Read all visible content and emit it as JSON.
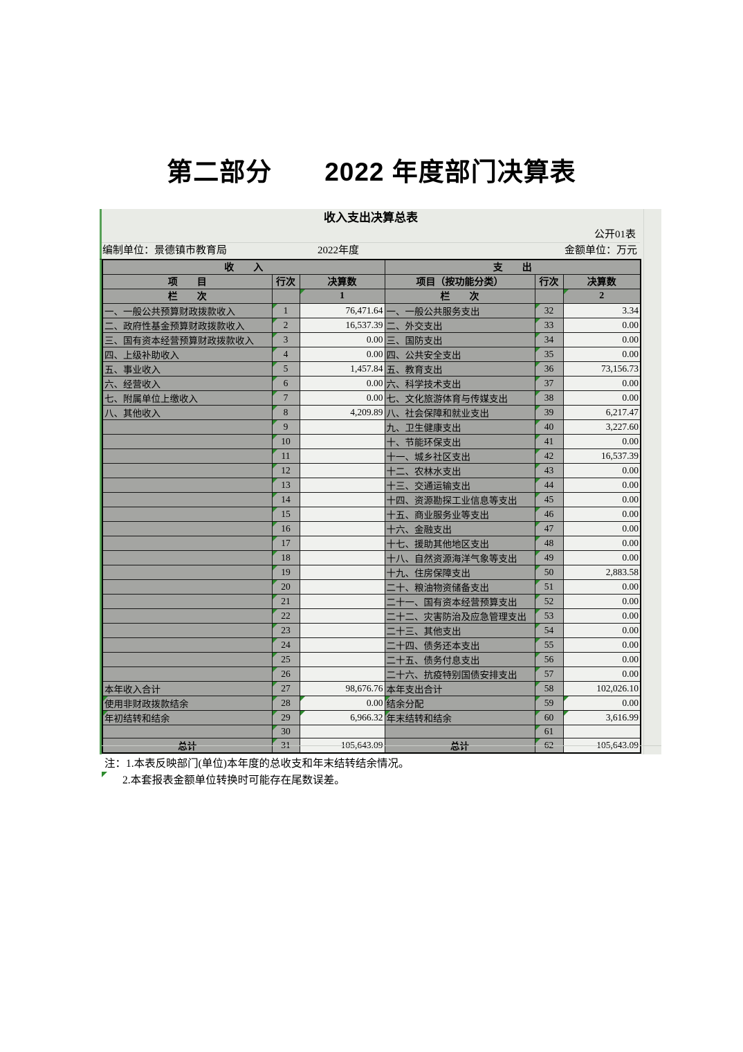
{
  "page": {
    "title": "第二部分　　2022 年度部门决算表"
  },
  "sheet": {
    "table_title": "收入支出决算总表",
    "doc_code": "公开01表",
    "prepared_by": "编制单位：景德镇市教育局",
    "period": "2022年度",
    "unit_label": "金额单位：万元",
    "headers": {
      "income_section": "收　　入",
      "expense_section": "支　　出",
      "item": "项　　目",
      "row_no": "行次",
      "amount": "决算数",
      "item_expense": "项目（按功能分类）",
      "row_no2": "行次",
      "amount2": "决算数",
      "lanci": "栏　　次",
      "lanci2": "栏　　次",
      "col1": "1",
      "col2": "2"
    },
    "rows": [
      {
        "il": "一、一般公共预算财政拨款收入",
        "ino": "1",
        "iv": "76,471.64",
        "el": "一、一般公共服务支出",
        "eno": "32",
        "ev": "3.34"
      },
      {
        "il": "二、政府性基金预算财政拨款收入",
        "ino": "2",
        "iv": "16,537.39",
        "el": "二、外交支出",
        "eno": "33",
        "ev": "0.00"
      },
      {
        "il": "三、国有资本经营预算财政拨款收入",
        "ino": "3",
        "iv": "0.00",
        "el": "三、国防支出",
        "eno": "34",
        "ev": "0.00"
      },
      {
        "il": "四、上级补助收入",
        "ino": "4",
        "iv": "0.00",
        "el": "四、公共安全支出",
        "eno": "35",
        "ev": "0.00"
      },
      {
        "il": "五、事业收入",
        "ino": "5",
        "iv": "1,457.84",
        "el": "五、教育支出",
        "eno": "36",
        "ev": "73,156.73"
      },
      {
        "il": "六、经营收入",
        "ino": "6",
        "iv": "0.00",
        "el": "六、科学技术支出",
        "eno": "37",
        "ev": "0.00"
      },
      {
        "il": "七、附属单位上缴收入",
        "ino": "7",
        "iv": "0.00",
        "el": "七、文化旅游体育与传媒支出",
        "eno": "38",
        "ev": "0.00"
      },
      {
        "il": "八、其他收入",
        "ino": "8",
        "iv": "4,209.89",
        "el": "八、社会保障和就业支出",
        "eno": "39",
        "ev": "6,217.47"
      },
      {
        "il": "",
        "ino": "9",
        "iv": "",
        "el": "九、卫生健康支出",
        "eno": "40",
        "ev": "3,227.60"
      },
      {
        "il": "",
        "ino": "10",
        "iv": "",
        "el": "十、节能环保支出",
        "eno": "41",
        "ev": "0.00"
      },
      {
        "il": "",
        "ino": "11",
        "iv": "",
        "el": "十一、城乡社区支出",
        "eno": "42",
        "ev": "16,537.39"
      },
      {
        "il": "",
        "ino": "12",
        "iv": "",
        "el": "十二、农林水支出",
        "eno": "43",
        "ev": "0.00"
      },
      {
        "il": "",
        "ino": "13",
        "iv": "",
        "el": "十三、交通运输支出",
        "eno": "44",
        "ev": "0.00"
      },
      {
        "il": "",
        "ino": "14",
        "iv": "",
        "el": "十四、资源勘探工业信息等支出",
        "eno": "45",
        "ev": "0.00"
      },
      {
        "il": "",
        "ino": "15",
        "iv": "",
        "el": "十五、商业服务业等支出",
        "eno": "46",
        "ev": "0.00"
      },
      {
        "il": "",
        "ino": "16",
        "iv": "",
        "el": "十六、金融支出",
        "eno": "47",
        "ev": "0.00"
      },
      {
        "il": "",
        "ino": "17",
        "iv": "",
        "el": "十七、援助其他地区支出",
        "eno": "48",
        "ev": "0.00"
      },
      {
        "il": "",
        "ino": "18",
        "iv": "",
        "el": "十八、自然资源海洋气象等支出",
        "eno": "49",
        "ev": "0.00"
      },
      {
        "il": "",
        "ino": "19",
        "iv": "",
        "el": "十九、住房保障支出",
        "eno": "50",
        "ev": "2,883.58"
      },
      {
        "il": "",
        "ino": "20",
        "iv": "",
        "el": "二十、粮油物资储备支出",
        "eno": "51",
        "ev": "0.00"
      },
      {
        "il": "",
        "ino": "21",
        "iv": "",
        "el": "二十一、国有资本经营预算支出",
        "eno": "52",
        "ev": "0.00"
      },
      {
        "il": "",
        "ino": "22",
        "iv": "",
        "el": "二十二、灾害防治及应急管理支出",
        "eno": "53",
        "ev": "0.00"
      },
      {
        "il": "",
        "ino": "23",
        "iv": "",
        "el": "二十三、其他支出",
        "eno": "54",
        "ev": "0.00"
      },
      {
        "il": "",
        "ino": "24",
        "iv": "",
        "el": "二十四、债务还本支出",
        "eno": "55",
        "ev": "0.00"
      },
      {
        "il": "",
        "ino": "25",
        "iv": "",
        "el": "二十五、债务付息支出",
        "eno": "56",
        "ev": "0.00"
      },
      {
        "il": "",
        "ino": "26",
        "iv": "",
        "el": "二十六、抗疫特别国债安排支出",
        "eno": "57",
        "ev": "0.00"
      },
      {
        "il": "本年收入合计",
        "ino": "27",
        "iv": "98,676.76",
        "el": "本年支出合计",
        "eno": "58",
        "ev": "102,026.10"
      },
      {
        "il": "使用非财政拨款结余",
        "ino": "28",
        "iv": "0.00",
        "el": "结余分配",
        "eno": "59",
        "ev": "0.00",
        "ii": 1,
        "ei": 1,
        "lt": 1
      },
      {
        "il": "年初结转和结余",
        "ino": "29",
        "iv": "6,966.32",
        "el": "年末结转和结余",
        "eno": "60",
        "ev": "3,616.99",
        "ii": 1,
        "ei": 1,
        "lt": 1
      },
      {
        "il": "",
        "ino": "30",
        "iv": "",
        "el": "",
        "eno": "61",
        "ev": ""
      },
      {
        "il": "总计",
        "ino": "31",
        "iv": "105,643.09",
        "el": "总计",
        "eno": "62",
        "ev": "105,643.09",
        "tc": 1
      }
    ],
    "notes": [
      "注：1.本表反映部门(单位)本年度的总收支和年末结转结余情况。",
      "2.本套报表金额单位转换时可能存在尾数误差。"
    ],
    "colors": {
      "indicator_green": "#2e8b2e",
      "label_cell_gray": "#a4a5a2",
      "rowno_cell_gray": "#b0b1ae",
      "value_cell_light": "#f0f1ee",
      "sheet_background": "#e9ebe6"
    }
  }
}
